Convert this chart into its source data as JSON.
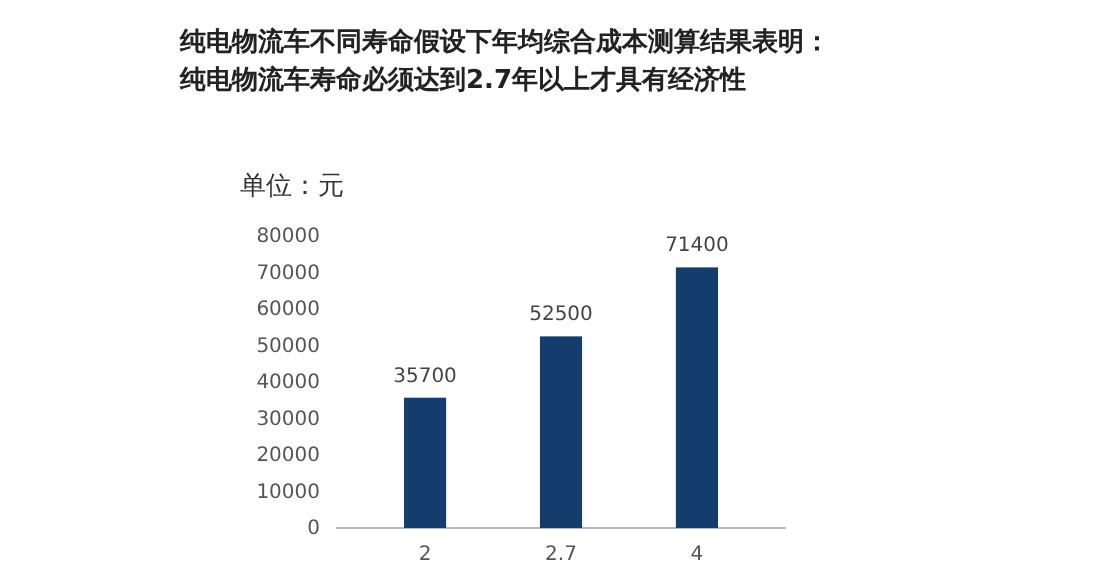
{
  "chart_data": {
    "type": "bar",
    "title": "纯电物流车不同寿命假设下年均综合成本测算结果表明：",
    "subtitle": "纯电物流车寿命必须达到2.7年以上才具有经济性",
    "ylabel": "单位：元",
    "categories": [
      "2",
      "2.7",
      "4"
    ],
    "values": [
      35700,
      52500,
      71400
    ],
    "color": "#143d6e",
    "ylim": [
      0,
      80000
    ],
    "yticks": [
      0,
      10000,
      20000,
      30000,
      40000,
      50000,
      60000,
      70000,
      80000
    ],
    "data_labels": true,
    "grid": false
  }
}
